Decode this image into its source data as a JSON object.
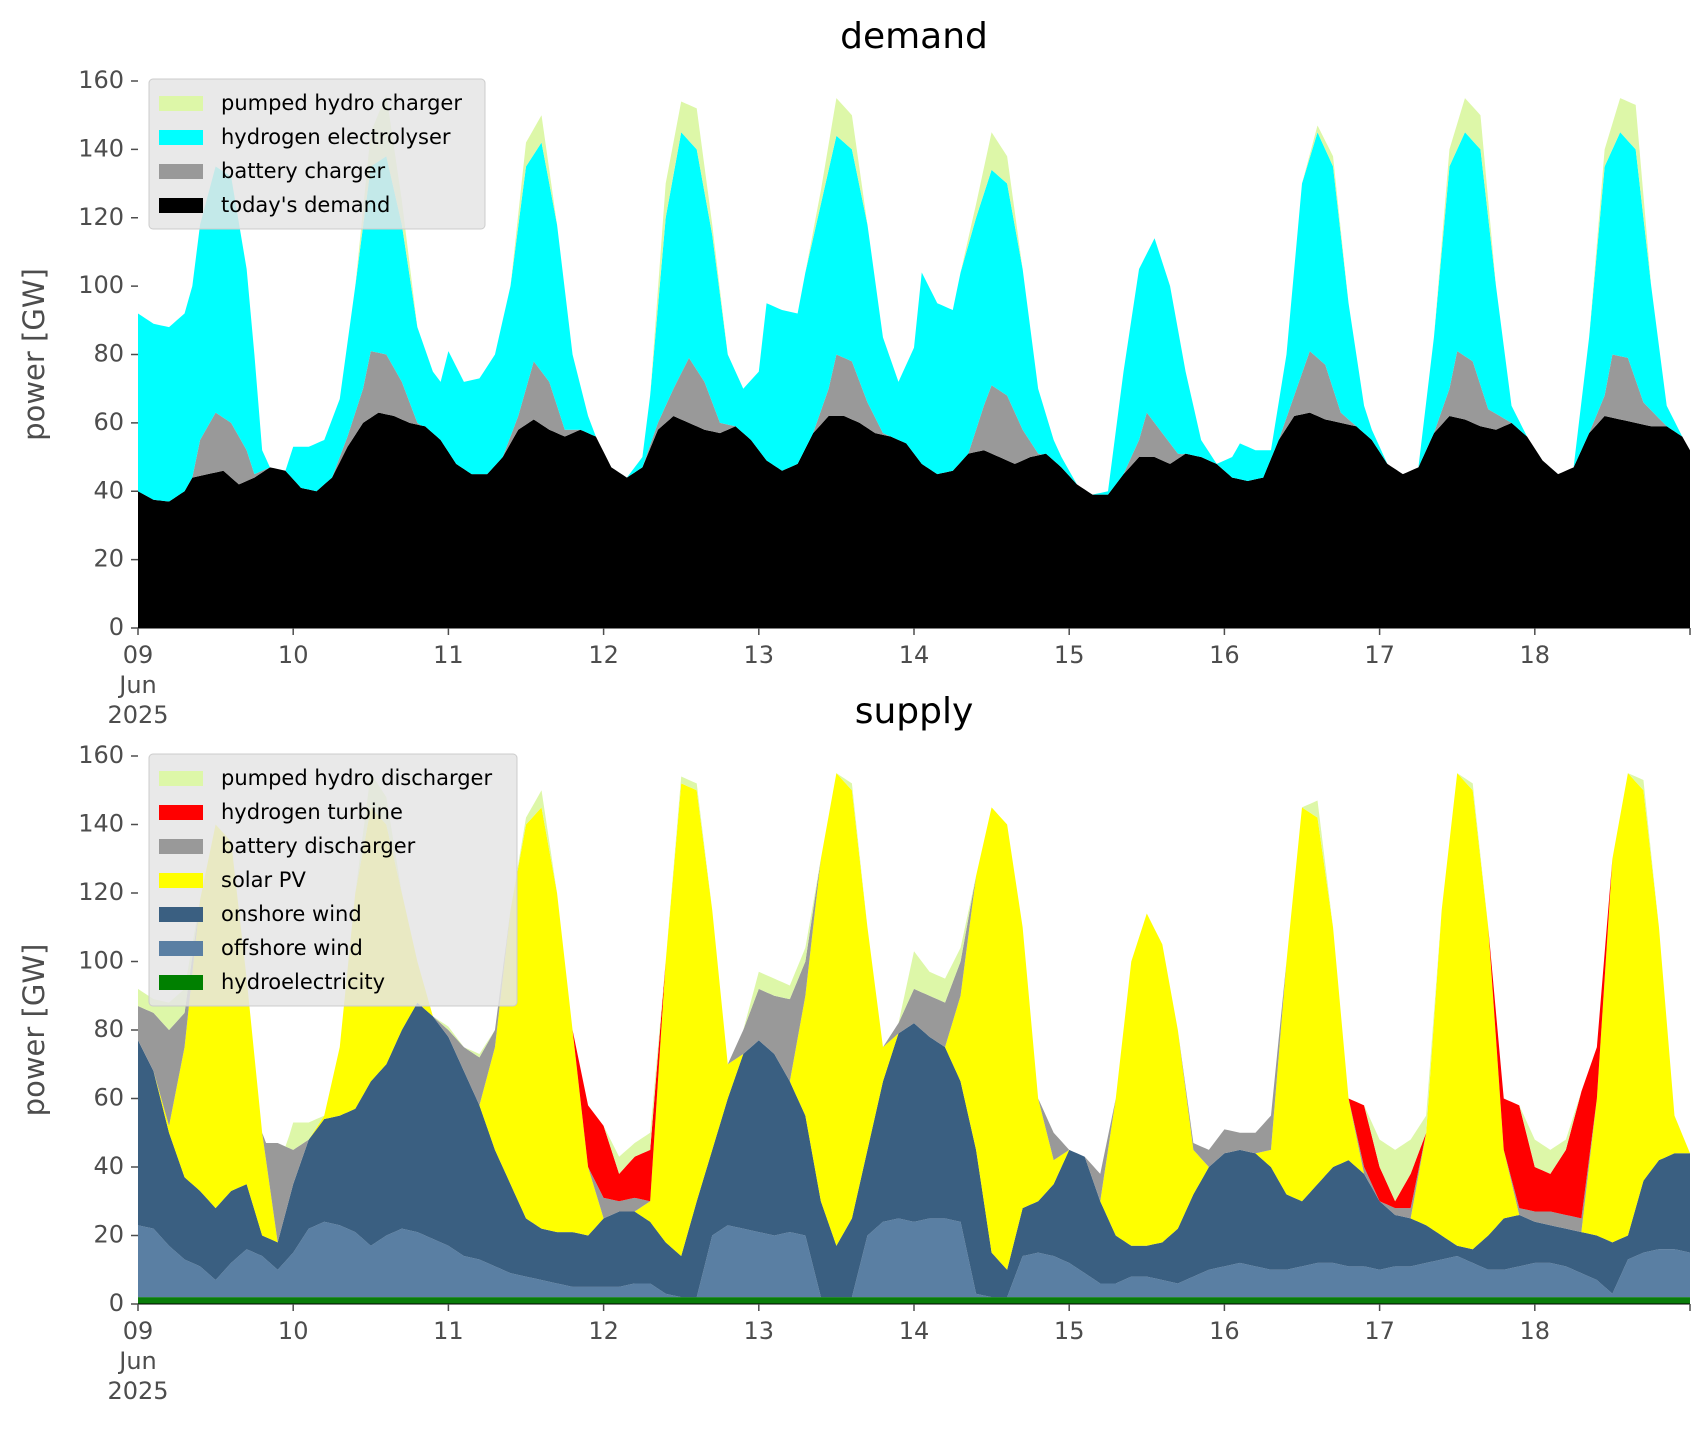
{
  "chart_data": [
    {
      "type": "area",
      "stacked": true,
      "title": "demand",
      "ylabel": "power [GW]",
      "ylim": [
        0,
        160
      ],
      "yticks": [
        "0",
        "20",
        "40",
        "60",
        "80",
        "100",
        "120",
        "140",
        "160"
      ],
      "xlim_days": [
        9,
        19
      ],
      "xtick_labels": [
        {
          "day": 9,
          "lines": [
            "09",
            "Jun",
            "2025"
          ]
        },
        {
          "day": 10,
          "lines": [
            "10"
          ]
        },
        {
          "day": 11,
          "lines": [
            "11"
          ]
        },
        {
          "day": 12,
          "lines": [
            "12"
          ]
        },
        {
          "day": 13,
          "lines": [
            "13"
          ]
        },
        {
          "day": 14,
          "lines": [
            "14"
          ]
        },
        {
          "day": 15,
          "lines": [
            "15"
          ]
        },
        {
          "day": 16,
          "lines": [
            "16"
          ]
        },
        {
          "day": 17,
          "lines": [
            "17"
          ]
        },
        {
          "day": 18,
          "lines": [
            "18"
          ]
        }
      ],
      "legend_position": "top-left",
      "series": [
        {
          "name": "today's demand",
          "color": "#000000",
          "legend_color": "#000000"
        },
        {
          "name": "battery charger",
          "color": "#999999",
          "legend_color": "#999999"
        },
        {
          "name": "hydrogen electrolyser",
          "color": "#00ffff",
          "legend_color": "#00ffff"
        },
        {
          "name": "pumped hydro charger",
          "color": "#ddf7a8",
          "legend_color": "#ddf7a8"
        }
      ],
      "legend_order": [
        "pumped hydro charger",
        "hydrogen electrolyser",
        "battery charger",
        "today's demand"
      ]
    },
    {
      "type": "area",
      "stacked": true,
      "title": "supply",
      "ylabel": "power [GW]",
      "ylim": [
        0,
        160
      ],
      "yticks": [
        "0",
        "20",
        "40",
        "60",
        "80",
        "100",
        "120",
        "140",
        "160"
      ],
      "xlim_days": [
        9,
        19
      ],
      "xtick_labels": [
        {
          "day": 9,
          "lines": [
            "09",
            "Jun",
            "2025"
          ]
        },
        {
          "day": 10,
          "lines": [
            "10"
          ]
        },
        {
          "day": 11,
          "lines": [
            "11"
          ]
        },
        {
          "day": 12,
          "lines": [
            "12"
          ]
        },
        {
          "day": 13,
          "lines": [
            "13"
          ]
        },
        {
          "day": 14,
          "lines": [
            "14"
          ]
        },
        {
          "day": 15,
          "lines": [
            "15"
          ]
        },
        {
          "day": 16,
          "lines": [
            "16"
          ]
        },
        {
          "day": 17,
          "lines": [
            "17"
          ]
        },
        {
          "day": 18,
          "lines": [
            "18"
          ]
        }
      ],
      "legend_position": "top-left",
      "series": [
        {
          "name": "hydroelectricity",
          "color": "#0a7d0a",
          "legend_color": "#008000"
        },
        {
          "name": "offshore wind",
          "color": "#5a7fa3",
          "legend_color": "#5a7fa3"
        },
        {
          "name": "onshore wind",
          "color": "#3a5f81",
          "legend_color": "#3a5f81"
        },
        {
          "name": "solar PV",
          "color": "#ffff00",
          "legend_color": "#ffff00"
        },
        {
          "name": "battery discharger",
          "color": "#999999",
          "legend_color": "#999999"
        },
        {
          "name": "hydrogen turbine",
          "color": "#ff0000",
          "legend_color": "#ff0000"
        },
        {
          "name": "pumped hydro discharger",
          "color": "#ddf7a8",
          "legend_color": "#ddf7a8"
        }
      ],
      "legend_order": [
        "pumped hydro discharger",
        "hydrogen turbine",
        "battery discharger",
        "solar PV",
        "onshore wind",
        "offshore wind",
        "hydroelectricity"
      ]
    }
  ]
}
